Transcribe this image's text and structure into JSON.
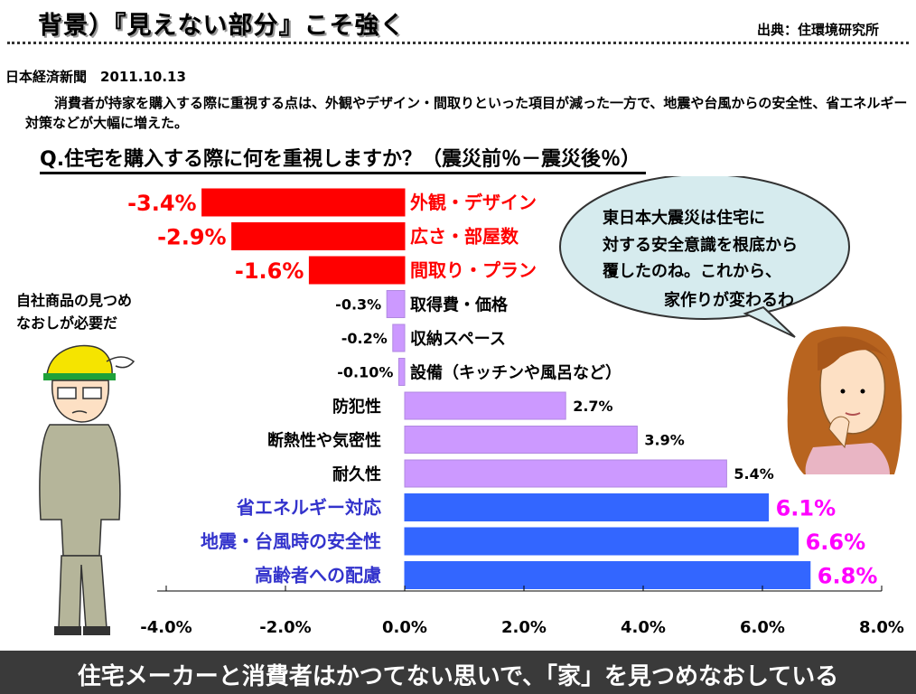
{
  "header": {
    "title": "背景）『見えない部分』こそ強く",
    "source": "出典：住環境研究所"
  },
  "article": {
    "newspaper": "日本経済新聞　2011.10.13",
    "lead": "消費者が持家を購入する際に重視する点は、外観やデザイン・間取りといった項目が減った一方で、地震や台風からの安全性、省エネルギー対策などが大幅に増えた。"
  },
  "question": "Q.住宅を購入する際に何を重視しますか？（震災前％－震災後％）",
  "speech": {
    "woman_line1": "東日本大震災は住宅に",
    "woman_line2": "対する安全意識を根底から",
    "woman_line3": "覆したのね。これから、",
    "woman_line4": "家作りが変わるわ",
    "worker_line1": "自社商品の見つめ",
    "worker_line2": "なおしが必要だ"
  },
  "footer": {
    "message": "住宅メーカーと消費者はかつてない思いで、「家」を見つめなおしている"
  },
  "colors": {
    "red": "#ff0000",
    "purple": "#cc99ff",
    "blue": "#3366ff",
    "magenta": "#ff00ff",
    "navy": "#3333cc"
  },
  "chart_data": {
    "type": "bar",
    "orientation": "horizontal",
    "categories": [
      "外観・デザイン",
      "広さ・部屋数",
      "間取り・プラン",
      "取得費・価格",
      "収納スペース",
      "設備（キッチンや風呂など）",
      "防犯性",
      "断熱性や気密性",
      "耐久性",
      "省エネルギー対応",
      "地震・台風時の安全性",
      "高齢者への配慮"
    ],
    "values": [
      -3.4,
      -2.9,
      -1.6,
      -0.3,
      -0.2,
      -0.1,
      2.7,
      3.9,
      5.4,
      6.1,
      6.6,
      6.8
    ],
    "value_labels": [
      "-3.4%",
      "-2.9%",
      "-1.6%",
      "-0.3%",
      "-0.2%",
      "-0.10%",
      "2.7%",
      "3.9%",
      "5.4%",
      "6.1%",
      "6.6%",
      "6.8%"
    ],
    "groups": [
      "red",
      "red",
      "red",
      "purple",
      "purple",
      "purple",
      "purple",
      "purple",
      "purple",
      "blue",
      "blue",
      "blue"
    ],
    "x_ticks": [
      "-4.0%",
      "-2.0%",
      "0.0%",
      "2.0%",
      "4.0%",
      "6.0%",
      "8.0%"
    ],
    "xlim": [
      -4.0,
      8.0
    ],
    "grid": false,
    "legend": false
  }
}
